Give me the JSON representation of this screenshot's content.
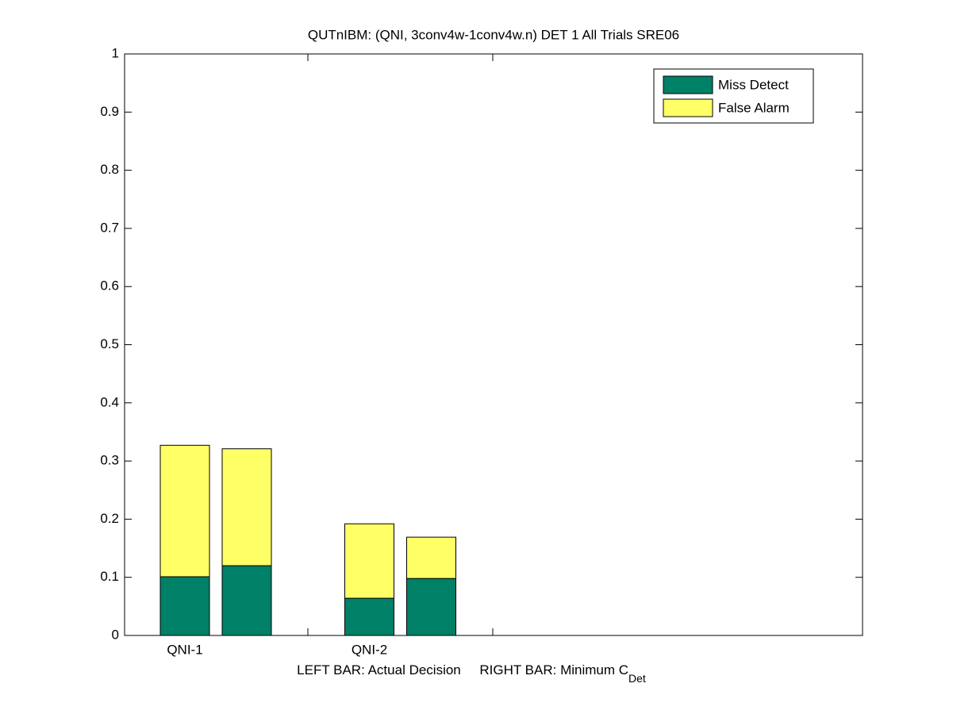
{
  "chart_data": {
    "type": "bar",
    "title": "QUTnIBM: (QNI, 3conv4w-1conv4w.n) DET 1 All Trials SRE06",
    "xlabel": "LEFT BAR: Actual Decision     RIGHT BAR: Minimum C",
    "xlabel_subscript": "Det",
    "categories": [
      "QNI-1",
      "QNI-2"
    ],
    "series": [
      {
        "name": "Miss Detect",
        "color": "#008066",
        "values": [
          [
            0.101,
            0.12
          ],
          [
            0.064,
            0.098
          ]
        ]
      },
      {
        "name": "False Alarm",
        "color": "#ffff66",
        "values": [
          [
            0.226,
            0.201
          ],
          [
            0.128,
            0.071
          ]
        ]
      }
    ],
    "ylim": [
      0,
      1
    ],
    "yticks": [
      0,
      0.1,
      0.2,
      0.3,
      0.4,
      0.5,
      0.6,
      0.7,
      0.8,
      0.9,
      1
    ],
    "legend": "top-right"
  }
}
